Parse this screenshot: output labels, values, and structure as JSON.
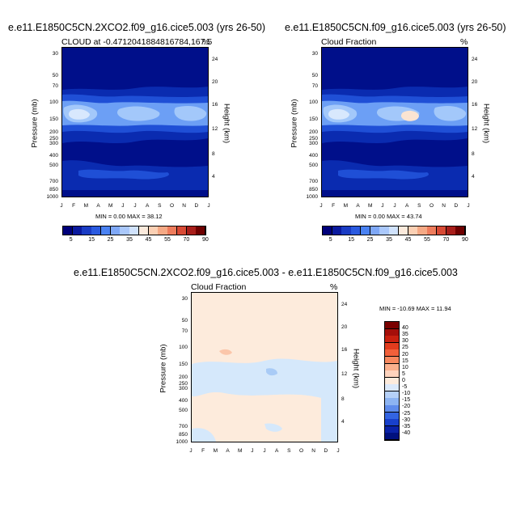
{
  "chart_data": [
    {
      "type": "heatmap",
      "title": "e.e11.E1850C5CN.2XCO2.f09_g16.cice5.003 (yrs 26-50)",
      "subtitle_left": "CLOUD at -0.4712041884816784,167.5",
      "subtitle_right": "%",
      "ylabel": "Pressure (mb)",
      "ylabel_right": "Height (km)",
      "yticks": [
        "30",
        "50",
        "70",
        "100",
        "150",
        "200",
        "250",
        "300",
        "400",
        "500",
        "700",
        "850",
        "1000"
      ],
      "yticks_right": [
        "24",
        "20",
        "16",
        "12",
        "8",
        "4"
      ],
      "xticks": [
        "J",
        "F",
        "M",
        "A",
        "M",
        "J",
        "J",
        "A",
        "S",
        "O",
        "N",
        "D",
        "J"
      ],
      "minmax": "MIN =  0.00 MAX =  38.12",
      "colorbar_labels": [
        "5",
        "15",
        "25",
        "35",
        "45",
        "55",
        "70",
        "90"
      ],
      "colorbar_colors": [
        "#00007a",
        "#0a1a9e",
        "#1a3cc4",
        "#2a5ae0",
        "#4a82f2",
        "#7fa8f7",
        "#aac8fb",
        "#d0e2fc",
        "#fbeadc",
        "#fbd0b4",
        "#f5a985",
        "#ee7c5c",
        "#d84a35",
        "#a81e1a",
        "#6e0000"
      ],
      "levels": [
        "#000f8a",
        "#0a2bb0",
        "#1f4fd6",
        "#6c9ff5",
        "#a3c8fa",
        "#d8e8fd"
      ]
    },
    {
      "type": "heatmap",
      "title": "e.e11.E1850C5CN.f09_g16.cice5.003 (yrs 26-50)",
      "subtitle_left": "Cloud Fraction",
      "subtitle_right": "%",
      "ylabel": "Pressure (mb)",
      "ylabel_right": "Height (km)",
      "yticks": [
        "30",
        "50",
        "70",
        "100",
        "150",
        "200",
        "250",
        "300",
        "400",
        "500",
        "700",
        "850",
        "1000"
      ],
      "yticks_right": [
        "24",
        "20",
        "16",
        "12",
        "8",
        "4"
      ],
      "xticks": [
        "J",
        "F",
        "M",
        "A",
        "M",
        "J",
        "J",
        "A",
        "S",
        "O",
        "N",
        "D",
        "J"
      ],
      "minmax": "MIN =  0.00 MAX =  43.74",
      "colorbar_labels": [
        "5",
        "15",
        "25",
        "35",
        "45",
        "55",
        "70",
        "90"
      ],
      "colorbar_colors": [
        "#00007a",
        "#0a1a9e",
        "#1a3cc4",
        "#2a5ae0",
        "#4a82f2",
        "#7fa8f7",
        "#aac8fb",
        "#d0e2fc",
        "#fbeadc",
        "#fbd0b4",
        "#f5a985",
        "#ee7c5c",
        "#d84a35",
        "#a81e1a",
        "#6e0000"
      ],
      "levels": [
        "#000f8a",
        "#0a2bb0",
        "#1f4fd6",
        "#6c9ff5",
        "#a3c8fa",
        "#d8e8fd",
        "#fbe4d2"
      ]
    },
    {
      "type": "heatmap",
      "title": "e.e11.E1850C5CN.2XCO2.f09_g16.cice5.003 - e.e11.E1850C5CN.f09_g16.cice5.003",
      "subtitle_left": "Cloud Fraction",
      "subtitle_right": "%",
      "ylabel": "Pressure (mb)",
      "ylabel_right": "Height (km)",
      "yticks": [
        "30",
        "50",
        "70",
        "100",
        "150",
        "200",
        "250",
        "300",
        "400",
        "500",
        "700",
        "850",
        "1000"
      ],
      "yticks_right": [
        "24",
        "20",
        "16",
        "12",
        "8",
        "4"
      ],
      "xticks": [
        "J",
        "F",
        "M",
        "A",
        "M",
        "J",
        "J",
        "A",
        "S",
        "O",
        "N",
        "D",
        "J"
      ],
      "minmax": "MIN = -10.69 MAX =  11.94",
      "colorbar_labels": [
        "40",
        "35",
        "30",
        "25",
        "20",
        "15",
        "10",
        "5",
        "0",
        "-5",
        "-10",
        "-15",
        "-20",
        "-25",
        "-30",
        "-35",
        "-40"
      ],
      "colorbar_colors": [
        "#7a0000",
        "#a50f0a",
        "#c8200f",
        "#e23c1e",
        "#f2603a",
        "#f8885e",
        "#fbb08d",
        "#fdd3bd",
        "#fdebdc",
        "#dbe9fb",
        "#b5d0f7",
        "#8db4f2",
        "#5f8cec",
        "#3364e2",
        "#1840cc",
        "#0a22a8",
        "#00117e"
      ],
      "diff_pos": "#fdebdc",
      "diff_neg": "#d5e8fb",
      "diff_pos2": "#fbc6aa",
      "diff_neg2": "#a9cbf6"
    }
  ]
}
